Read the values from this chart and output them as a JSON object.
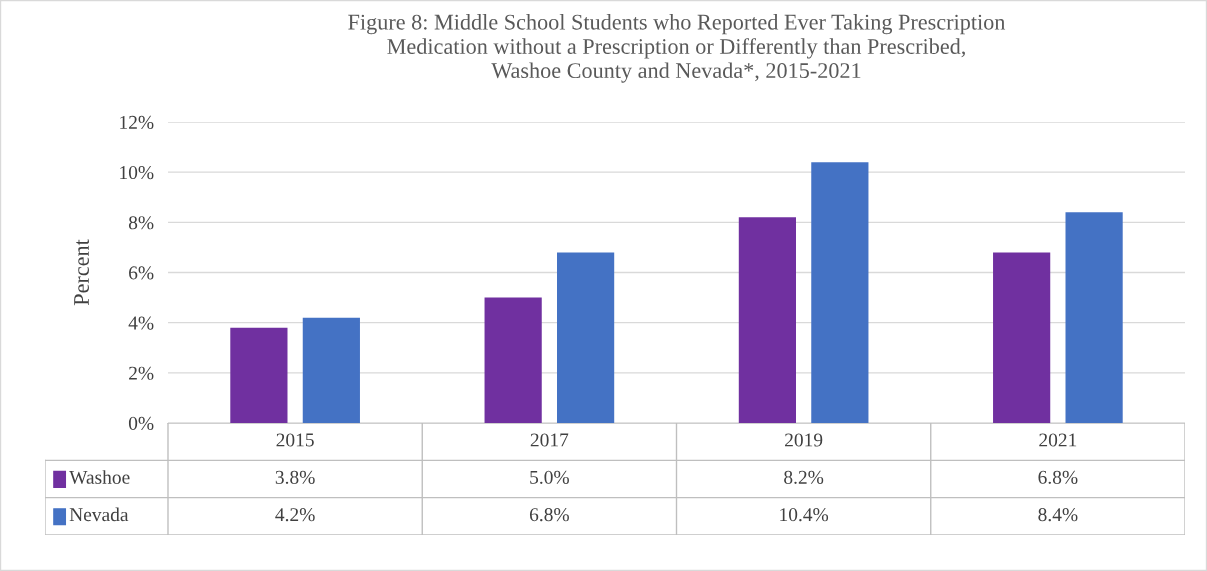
{
  "chart_data": {
    "type": "bar",
    "title": "Figure 8: Middle School Students who Reported Ever Taking Prescription\nMedication without a Prescription or Differently than Prescribed,\nWashoe County and Nevada*, 2015-2021",
    "ylabel": "Percent",
    "categories": [
      "2015",
      "2017",
      "2019",
      "2021"
    ],
    "series": [
      {
        "name": "Washoe",
        "color": "#7030a0",
        "values": [
          3.8,
          5.0,
          8.2,
          6.8
        ],
        "value_labels": [
          "3.8%",
          "5.0%",
          "8.2%",
          "6.8%"
        ]
      },
      {
        "name": "Nevada",
        "color": "#4472c4",
        "values": [
          4.2,
          6.8,
          10.4,
          8.4
        ],
        "value_labels": [
          "4.2%",
          "6.8%",
          "10.4%",
          "8.4%"
        ]
      }
    ],
    "ylim": [
      0,
      12
    ],
    "yticks": [
      {
        "value": 0,
        "label": "0%"
      },
      {
        "value": 2,
        "label": "2%"
      },
      {
        "value": 4,
        "label": "4%"
      },
      {
        "value": 6,
        "label": "6%"
      },
      {
        "value": 8,
        "label": "8%"
      },
      {
        "value": 10,
        "label": "10%"
      },
      {
        "value": 12,
        "label": "12%"
      }
    ],
    "grid": "y",
    "legend": "left"
  }
}
